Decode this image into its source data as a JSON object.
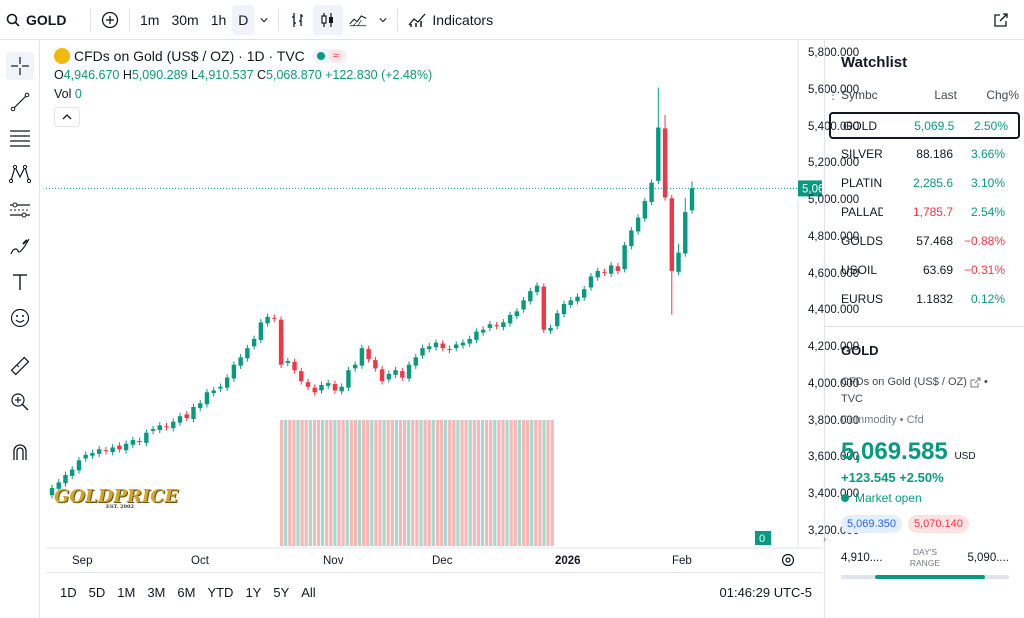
{
  "topbar": {
    "symbol": "GOLD",
    "intervals": [
      "1m",
      "30m",
      "1h",
      "D"
    ],
    "indicators_label": "Indicators"
  },
  "legend": {
    "title": "CFDs on Gold (US$ / OZ) · 1D · TVC",
    "o_label": "O",
    "o": "4,946.670",
    "h_label": "H",
    "h": "5,090.289",
    "l_label": "L",
    "l": "4,910.537",
    "c_label": "C",
    "c": "5,068.870",
    "change": "+122.830 (+2.48%)",
    "vol_label": "Vol",
    "vol": "0"
  },
  "price_axis": {
    "ticks": [
      "5,800.000",
      "5,600.000",
      "5,400.000",
      "5,200.000",
      "5,000.000",
      "4,800.000",
      "4,600.000",
      "4,400.000",
      "4,200.000",
      "4,000.000",
      "3,800.000",
      "3,600.000",
      "3,400.000",
      "3,200.000"
    ],
    "last_price": "5,068.870",
    "vol_badge": "0"
  },
  "time_axis": {
    "labels": [
      "Sep",
      "Oct",
      "Nov",
      "Dec",
      "2026",
      "Feb"
    ]
  },
  "watermark": {
    "text": "GOLDPRICE",
    "sub": "EST. 2002"
  },
  "bottombar": {
    "ranges": [
      "1D",
      "5D",
      "1M",
      "3M",
      "6M",
      "YTD",
      "1Y",
      "5Y",
      "All"
    ],
    "clock": "01:46:29 UTC-5"
  },
  "watchlist": {
    "title": "Watchlist",
    "col_symbol": "Symbc",
    "col_last": "Last",
    "col_chg": "Chg%",
    "rows": [
      {
        "symbol": "GOLD",
        "last": "5,069.5",
        "chg": "2.50%",
        "dir": "pos",
        "last_dir": "pos"
      },
      {
        "symbol": "SILVER",
        "last": "88.186",
        "chg": "3.66%",
        "dir": "pos",
        "last_dir": "neutral"
      },
      {
        "symbol": "PLATINU",
        "last": "2,285.6",
        "chg": "3.10%",
        "dir": "pos",
        "last_dir": "pos"
      },
      {
        "symbol": "PALLADI",
        "last": "1,785.7",
        "chg": "2.54%",
        "dir": "pos",
        "last_dir": "neg"
      },
      {
        "symbol": "GOLDSIL",
        "last": "57.468",
        "chg": "−0.88%",
        "dir": "neg",
        "last_dir": "neutral"
      },
      {
        "symbol": "USOIL",
        "last": "63.69",
        "chg": "−0.31%",
        "dir": "neg",
        "last_dir": "neutral"
      },
      {
        "symbol": "EURUSD",
        "last": "1.1832",
        "chg": "0.12%",
        "dir": "pos",
        "last_dir": "neutral"
      }
    ]
  },
  "details": {
    "symbol": "GOLD",
    "name": "CFDs on Gold (US$ / OZ)",
    "source": "TVC",
    "type": "Commodity • Cfd",
    "price": "5,069.585",
    "currency": "USD",
    "change": "+123.545  +2.50%",
    "status": "Market open",
    "bid": "5,069.350",
    "ask": "5,070.140",
    "range_low": "4,910....",
    "range_label": "DAY'S RANGE",
    "range_high": "5,090...."
  },
  "colors": {
    "up": "#089981",
    "down": "#f23645",
    "accent": "#2962ff"
  },
  "chart_data": {
    "type": "candlestick",
    "title": "CFDs on Gold (US$ / OZ) · 1D · TVC",
    "ylim": [
      3100,
      5850
    ],
    "x_labels": [
      "Sep",
      "Oct",
      "Nov",
      "Dec",
      "2026",
      "Feb"
    ],
    "closes": [
      3440,
      3470,
      3510,
      3540,
      3590,
      3620,
      3630,
      3650,
      3640,
      3660,
      3650,
      3680,
      3700,
      3690,
      3740,
      3760,
      3780,
      3770,
      3800,
      3830,
      3820,
      3880,
      3900,
      3960,
      3970,
      3990,
      4040,
      4110,
      4150,
      4200,
      4250,
      4340,
      4370,
      4360,
      4110,
      4130,
      4080,
      4020,
      3990,
      3960,
      4000,
      4010,
      3970,
      3990,
      4080,
      4110,
      4200,
      4140,
      4090,
      4020,
      4060,
      4080,
      4040,
      4110,
      4150,
      4200,
      4210,
      4230,
      4200,
      4190,
      4220,
      4230,
      4250,
      4290,
      4300,
      4330,
      4320,
      4340,
      4380,
      4400,
      4460,
      4510,
      4540,
      4300,
      4310,
      4390,
      4440,
      4460,
      4480,
      4520,
      4590,
      4620,
      4610,
      4650,
      4620,
      4760,
      4840,
      4910,
      5000,
      5100,
      5400,
      5020,
      4620,
      4720,
      4940,
      5069
    ]
  }
}
